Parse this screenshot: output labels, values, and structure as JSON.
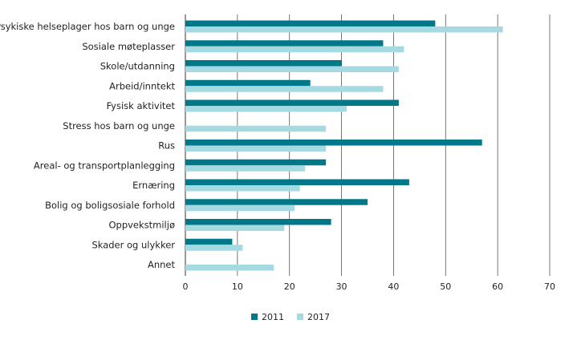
{
  "chart_data": {
    "type": "bar",
    "orientation": "horizontal",
    "categories": [
      "Psykiske helseplager hos barn og unge",
      "Sosiale møteplasser",
      "Skole/utdanning",
      "Arbeid/inntekt",
      "Fysisk aktivitet",
      "Stress hos barn og unge",
      "Rus",
      "Areal- og transportplanlegging",
      "Ernæring",
      "Bolig og boligsosiale forhold",
      "Oppvekstmiljø",
      "Skader og ulykker",
      "Annet"
    ],
    "series": [
      {
        "name": "2011",
        "color": "#00788a",
        "values": [
          48,
          38,
          30,
          24,
          41,
          null,
          57,
          27,
          43,
          35,
          28,
          9,
          null
        ]
      },
      {
        "name": "2017",
        "color": "#a6dae3",
        "values": [
          61,
          42,
          41,
          38,
          31,
          27,
          27,
          23,
          22,
          21,
          19,
          11,
          17
        ]
      }
    ],
    "xlim": [
      0,
      70
    ],
    "xticks": [
      0,
      10,
      20,
      30,
      40,
      50,
      60,
      70
    ],
    "grid": "vertical",
    "legend_position": "bottom",
    "title": "",
    "xlabel": "",
    "ylabel": ""
  }
}
